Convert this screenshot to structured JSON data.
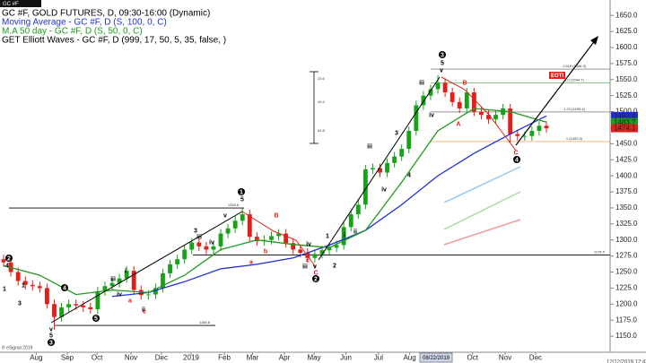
{
  "chart_data": {
    "type": "candlestick",
    "symbol": "GC #F",
    "title": "GC #F, GOLD FUTURES, D, 09:30-16:00 (Dynamic)",
    "indicator": "GET Elliott Waves - GC #F, D (999, 17, 50, 5, 35, false, )",
    "open": [
      1270,
      1265,
      1250,
      1236,
      1230,
      1228,
      1225,
      1200,
      1180,
      1195,
      1200,
      1198,
      1195,
      1192,
      1220,
      1228,
      1233,
      1240,
      1252,
      1222,
      1214,
      1215,
      1225,
      1248,
      1262,
      1270,
      1285,
      1296,
      1290,
      1285,
      1290,
      1310,
      1318,
      1330,
      1340,
      1305,
      1298,
      1300,
      1306,
      1310,
      1295,
      1285,
      1280,
      1272,
      1278,
      1284,
      1288,
      1292,
      1320,
      1340,
      1355,
      1410,
      1412,
      1405,
      1420,
      1430,
      1442,
      1470,
      1510,
      1525,
      1535,
      1545,
      1530,
      1515,
      1505,
      1530,
      1500,
      1495,
      1488,
      1495,
      1505,
      1465,
      1462,
      1462,
      1470,
      1478
    ],
    "high": [
      1277,
      1272,
      1257,
      1243,
      1237,
      1235,
      1232,
      1207,
      1202,
      1207,
      1207,
      1205,
      1202,
      1227,
      1235,
      1240,
      1247,
      1259,
      1259,
      1229,
      1222,
      1232,
      1255,
      1269,
      1277,
      1292,
      1303,
      1303,
      1297,
      1297,
      1317,
      1325,
      1337,
      1349,
      1347,
      1312,
      1307,
      1313,
      1317,
      1317,
      1302,
      1292,
      1287,
      1285,
      1291,
      1295,
      1299,
      1327,
      1347,
      1362,
      1417,
      1419,
      1419,
      1427,
      1437,
      1449,
      1477,
      1517,
      1532,
      1542,
      1557,
      1552,
      1537,
      1522,
      1537,
      1537,
      1507,
      1502,
      1502,
      1512,
      1512,
      1472,
      1469,
      1477,
      1485,
      1485
    ],
    "low": [
      1258,
      1243,
      1229,
      1223,
      1221,
      1218,
      1193,
      1160,
      1173,
      1188,
      1191,
      1188,
      1185,
      1185,
      1213,
      1221,
      1226,
      1233,
      1215,
      1207,
      1207,
      1208,
      1218,
      1241,
      1255,
      1263,
      1278,
      1283,
      1278,
      1278,
      1283,
      1303,
      1311,
      1323,
      1298,
      1291,
      1291,
      1293,
      1299,
      1288,
      1278,
      1273,
      1266,
      1265,
      1271,
      1277,
      1281,
      1285,
      1313,
      1333,
      1348,
      1403,
      1398,
      1398,
      1413,
      1423,
      1435,
      1463,
      1503,
      1518,
      1528,
      1523,
      1508,
      1498,
      1498,
      1493,
      1488,
      1481,
      1481,
      1488,
      1452,
      1455,
      1455,
      1455,
      1463,
      1467
    ],
    "close": [
      1265,
      1250,
      1236,
      1230,
      1228,
      1225,
      1200,
      1180,
      1195,
      1200,
      1198,
      1195,
      1192,
      1220,
      1228,
      1233,
      1240,
      1252,
      1222,
      1214,
      1215,
      1225,
      1248,
      1262,
      1270,
      1285,
      1296,
      1290,
      1285,
      1290,
      1310,
      1318,
      1330,
      1340,
      1305,
      1298,
      1300,
      1306,
      1310,
      1295,
      1285,
      1280,
      1272,
      1278,
      1284,
      1288,
      1292,
      1320,
      1340,
      1355,
      1410,
      1412,
      1405,
      1420,
      1430,
      1442,
      1470,
      1510,
      1525,
      1535,
      1545,
      1530,
      1515,
      1505,
      1530,
      1500,
      1495,
      1488,
      1495,
      1505,
      1465,
      1462,
      1462,
      1470,
      1478,
      1474.1
    ],
    "up_color": "#17a317",
    "down_color": "#e0201a",
    "xlim": [
      -0.5,
      83.8
    ],
    "xticks": [
      {
        "value": 4.5,
        "label": "Aug"
      },
      {
        "value": 8.8,
        "label": "Sep"
      },
      {
        "value": 12.9,
        "label": "Oct"
      },
      {
        "value": 17.6,
        "label": "Nov"
      },
      {
        "value": 21.8,
        "label": "Dec"
      },
      {
        "value": 25.9,
        "label": "2019"
      },
      {
        "value": 30.5,
        "label": "Feb"
      },
      {
        "value": 34.4,
        "label": "Mar"
      },
      {
        "value": 38.8,
        "label": "Apr"
      },
      {
        "value": 42.9,
        "label": "May"
      },
      {
        "value": 47.3,
        "label": "Jun"
      },
      {
        "value": 51.8,
        "label": "Jul"
      },
      {
        "value": 56.1,
        "label": "Aug"
      },
      {
        "value": 60.6,
        "label": "Sep"
      },
      {
        "value": 64.8,
        "label": "Oct"
      },
      {
        "value": 69.3,
        "label": "Nov"
      },
      {
        "value": 73.5,
        "label": "Dec"
      }
    ],
    "ylim": [
      1125,
      1674
    ],
    "yticks": [
      {
        "value": 1150,
        "label": "1150.0"
      },
      {
        "value": 1175,
        "label": "1175.0"
      },
      {
        "value": 1200,
        "label": "1200.0"
      },
      {
        "value": 1225,
        "label": "1225.0"
      },
      {
        "value": 1250,
        "label": "1250.0"
      },
      {
        "value": 1275,
        "label": "1275.0"
      },
      {
        "value": 1300,
        "label": "1300.0"
      },
      {
        "value": 1325,
        "label": "1325.0"
      },
      {
        "value": 1350,
        "label": "1350.0"
      },
      {
        "value": 1375,
        "label": "1375.0"
      },
      {
        "value": 1400,
        "label": "1400.0"
      },
      {
        "value": 1425,
        "label": "1425.0"
      },
      {
        "value": 1450,
        "label": "1450.0"
      },
      {
        "value": 1475,
        "label": "1475.0"
      },
      {
        "value": 1500,
        "label": "1500.0"
      },
      {
        "value": 1525,
        "label": "1525.0"
      },
      {
        "value": 1550,
        "label": "1550.0"
      },
      {
        "value": 1575,
        "label": "1575.0"
      },
      {
        "value": 1600,
        "label": "1600.0"
      },
      {
        "value": 1625,
        "label": "1625.0"
      },
      {
        "value": 1650,
        "label": "1650.0"
      }
    ],
    "series": [
      {
        "name": "Moving Average - GC #F, D (S, 100, 0, C)",
        "color": "#1f2fd6",
        "x": [
          15,
          20,
          25,
          30,
          35,
          40,
          45,
          50,
          55,
          60,
          65,
          70,
          75
        ],
        "values": [
          1212,
          1218,
          1235,
          1255,
          1262,
          1272,
          1292,
          1315,
          1355,
          1400,
          1435,
          1465,
          1493.4
        ]
      },
      {
        "name": "M.A 50 day - GC #F, D (S, 50, 0, C)",
        "color": "#1f9a1f",
        "x": [
          0,
          5,
          10,
          15,
          20,
          25,
          30,
          35,
          40,
          45,
          50,
          55,
          60,
          65,
          70,
          75
        ],
        "values": [
          1260,
          1245,
          1215,
          1222,
          1218,
          1245,
          1285,
          1300,
          1293,
          1288,
          1315,
          1390,
          1470,
          1505,
          1500,
          1483.7
        ]
      }
    ],
    "last_values": [
      {
        "value": 1493.4,
        "color": "#1f2fd6"
      },
      {
        "value": 1483.7,
        "color": "#1f9a1f"
      },
      {
        "value": 1474.1,
        "color": "#e0201a"
      }
    ],
    "levels": [
      1349.8,
      1276.5,
      1166.8
    ],
    "fib_levels": [
      {
        "value": 1566.3,
        "label": "1.618 (1566.3)",
        "color": "#555555"
      },
      {
        "value": 1544.7,
        "label": "1.0 (1544.7)",
        "color": "#3aa63a"
      },
      {
        "value": 1499.4,
        "label": "1.23 (1499.4)",
        "color": "#555555"
      },
      {
        "value": 1453.3,
        "label": "1 (1453.3)",
        "color": "#f08a3a"
      }
    ],
    "wave_labels": [
      "2",
      "4",
      "1",
      "3",
      "1",
      "5",
      "v",
      "5",
      "3",
      "4",
      "i",
      "iii",
      "iv",
      "ii",
      "a",
      "c",
      "3",
      "iii",
      "iv",
      "v",
      "1",
      "5",
      "a",
      "b",
      "B",
      "iii",
      "iv",
      "v",
      "c",
      "C",
      "2",
      "1",
      "2",
      "i",
      "ii",
      "iii",
      "iv",
      "3",
      "4",
      "iii",
      "iv",
      "v",
      "5",
      "3",
      "A",
      "B",
      "C",
      "4"
    ],
    "measure_labels": [
      "23.6",
      "40.4",
      "61.8"
    ],
    "flag": "EOTI",
    "date_box": "08/22/2019",
    "footer": "© eSignal 2019",
    "timestamp": "12/12/2019 12:47 PM"
  }
}
